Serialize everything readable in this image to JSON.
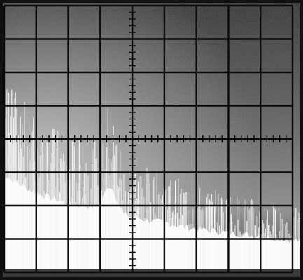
{
  "photo": {
    "kind": "oscilloscope spectrum analyzer photograph",
    "grid": {
      "columns": 9,
      "rows": 8,
      "minor_ticks_per_division": 5
    },
    "colors": {
      "screen_dark": "#141414",
      "screen_mid": "#6a6a6a",
      "trace": "#ffffff",
      "graticule": "#0a0a0a"
    },
    "spectrum_envelope": [
      0.68,
      0.62,
      0.57,
      0.53,
      0.5,
      0.47,
      0.46,
      0.45,
      0.6,
      0.4,
      0.38,
      0.36,
      0.35,
      0.33,
      0.31,
      0.3,
      0.29,
      0.28,
      0.27,
      0.26,
      0.25,
      0.24,
      0.23
    ]
  }
}
